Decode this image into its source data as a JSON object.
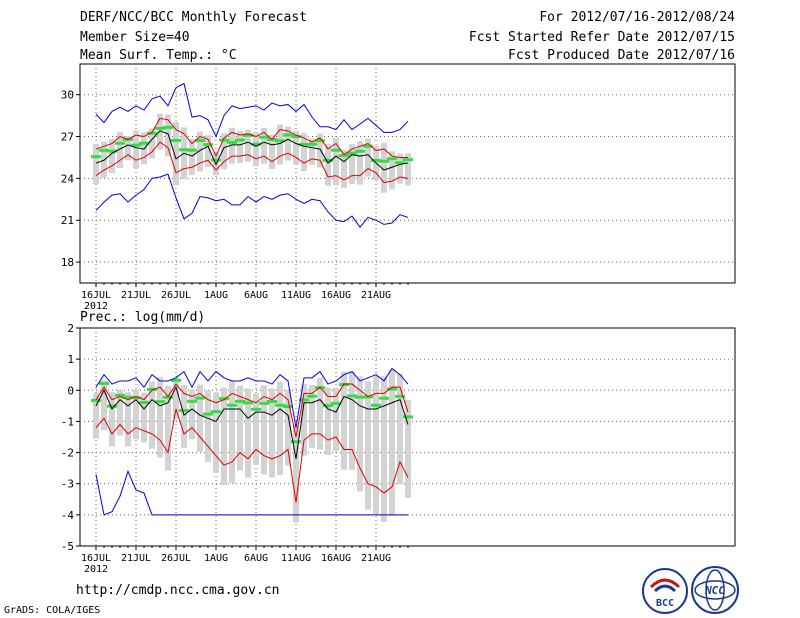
{
  "header": {
    "title": "DERF/NCC/BCC Monthly Forecast",
    "member_size": "Member Size=40",
    "variable": "Mean Surf. Temp.: °C",
    "period": "For 2012/07/16-2012/08/24",
    "started": "Fcst Started Refer Date 2012/07/15",
    "produced": "Fcst Produced Date 2012/07/16"
  },
  "footer": {
    "url": "http://cmdp.ncc.cma.gov.cn",
    "credit": "GrADS: COLA/IGES",
    "logo_left_text": "BCC",
    "logo_right_text": "NCC"
  },
  "colors": {
    "box": "#d3d3d3",
    "median": "#33dd44",
    "mean": "#000000",
    "pct": "#dd0000",
    "env": "#0000dd",
    "grid": "#666666"
  },
  "chart_data": [
    {
      "type": "line",
      "title": "Mean Surf. Temp.: °C",
      "xlabel": "",
      "ylabel": "°C",
      "x_tick_labels": [
        "16JUL",
        "21JUL",
        "26JUL",
        "1AUG",
        "6AUG",
        "11AUG",
        "16AUG",
        "21AUG"
      ],
      "x_year_label": "2012",
      "y_ticks": [
        18,
        21,
        24,
        27,
        30
      ],
      "ylim": [
        16.5,
        32.2
      ],
      "n_days": 40,
      "grid": true,
      "series": [
        {
          "name": "max",
          "values": [
            28.6,
            28.0,
            28.8,
            29.1,
            28.8,
            29.2,
            28.9,
            29.7,
            29.9,
            29.2,
            30.5,
            30.8,
            28.4,
            28.5,
            28.2,
            27.0,
            28.5,
            29.2,
            29.0,
            29.1,
            29.2,
            28.9,
            29.4,
            29.2,
            29.3,
            28.8,
            29.3,
            28.4,
            27.7,
            27.7,
            27.5,
            28.2,
            27.5,
            27.9,
            28.3,
            27.8,
            27.3,
            27.3,
            27.5,
            28.1
          ]
        },
        {
          "name": "p75",
          "values": [
            26.1,
            26.3,
            26.5,
            27.0,
            26.8,
            27.1,
            27.0,
            27.3,
            28.3,
            28.2,
            27.5,
            27.2,
            26.5,
            27.0,
            26.8,
            25.6,
            26.9,
            27.3,
            27.1,
            27.2,
            27.0,
            27.3,
            26.8,
            27.5,
            27.4,
            27.1,
            26.9,
            26.6,
            26.9,
            26.1,
            26.5,
            25.7,
            26.1,
            26.3,
            26.5,
            26.0,
            26.1,
            25.6,
            25.5,
            25.5
          ]
        },
        {
          "name": "mean",
          "values": [
            25.1,
            25.3,
            25.8,
            26.1,
            26.4,
            26.2,
            26.1,
            26.8,
            27.4,
            27.2,
            25.4,
            25.8,
            25.6,
            26.0,
            26.3,
            25.0,
            26.2,
            26.4,
            26.4,
            26.6,
            26.3,
            26.6,
            26.4,
            26.5,
            26.8,
            26.5,
            26.3,
            26.2,
            26.1,
            25.1,
            25.6,
            25.2,
            25.7,
            25.6,
            25.7,
            25.1,
            24.6,
            24.8,
            25.0,
            25.1
          ]
        },
        {
          "name": "p25",
          "values": [
            24.2,
            24.6,
            24.9,
            25.3,
            25.7,
            25.3,
            25.5,
            25.9,
            26.6,
            26.2,
            24.4,
            24.7,
            24.8,
            25.1,
            25.3,
            24.6,
            25.2,
            25.6,
            25.6,
            25.7,
            25.4,
            25.6,
            25.2,
            25.6,
            25.8,
            25.5,
            25.1,
            25.4,
            25.3,
            24.1,
            24.2,
            23.9,
            24.2,
            24.2,
            24.7,
            24.4,
            23.7,
            23.8,
            24.1,
            24.0
          ]
        },
        {
          "name": "min",
          "values": [
            21.7,
            22.3,
            22.8,
            22.9,
            22.3,
            22.8,
            23.2,
            24.0,
            24.1,
            24.3,
            22.6,
            21.1,
            21.5,
            22.7,
            22.6,
            22.4,
            22.5,
            22.1,
            22.1,
            22.7,
            22.3,
            22.7,
            22.5,
            22.8,
            22.9,
            22.5,
            22.2,
            22.5,
            22.4,
            21.6,
            21.0,
            20.9,
            21.3,
            20.5,
            21.2,
            21.0,
            20.7,
            20.8,
            21.4,
            21.2
          ]
        }
      ]
    },
    {
      "type": "line",
      "title": "Prec.: log(mm/d)",
      "xlabel": "",
      "ylabel": "log(mm/d)",
      "x_tick_labels": [
        "16JUL",
        "21JUL",
        "26JUL",
        "1AUG",
        "6AUG",
        "11AUG",
        "16AUG",
        "21AUG"
      ],
      "x_year_label": "2012",
      "y_ticks": [
        -5,
        -4,
        -3,
        -2,
        -1,
        0,
        1,
        2
      ],
      "ylim": [
        -5,
        2
      ],
      "n_days": 40,
      "grid": true,
      "series": [
        {
          "name": "max",
          "values": [
            0.1,
            0.5,
            0.2,
            0.3,
            0.3,
            0.4,
            0.1,
            0.5,
            0.3,
            0.3,
            0.4,
            0.6,
            0.1,
            0.6,
            0.3,
            0.6,
            0.4,
            0.3,
            0.3,
            0.4,
            0.3,
            0.3,
            0.2,
            0.5,
            0.3,
            -1.2,
            0.4,
            0.4,
            0.6,
            0.2,
            0.3,
            0.5,
            0.6,
            0.3,
            0.4,
            0.5,
            0.3,
            0.7,
            0.5,
            0.2
          ]
        },
        {
          "name": "p75",
          "values": [
            -0.3,
            0.1,
            -0.3,
            -0.2,
            -0.3,
            -0.2,
            -0.3,
            0.0,
            0.1,
            -0.2,
            0.2,
            -0.1,
            -0.2,
            -0.1,
            -0.3,
            -0.4,
            -0.3,
            -0.1,
            -0.2,
            -0.3,
            -0.4,
            -0.2,
            -0.3,
            -0.1,
            -0.3,
            -1.5,
            -0.1,
            -0.1,
            0.1,
            -0.2,
            -0.2,
            0.2,
            0.2,
            0.0,
            -0.2,
            -0.1,
            -0.1,
            0.1,
            0.1,
            -0.7
          ]
        },
        {
          "name": "mean",
          "values": [
            -0.5,
            0.0,
            -0.6,
            -0.3,
            -0.5,
            -0.3,
            -0.6,
            -0.3,
            -0.5,
            -0.4,
            0.1,
            -0.8,
            -0.6,
            -0.8,
            -0.9,
            -1.0,
            -0.6,
            -0.6,
            -0.6,
            -0.9,
            -0.7,
            -0.7,
            -0.8,
            -0.6,
            -0.8,
            -2.2,
            -0.4,
            -0.4,
            -0.3,
            -0.6,
            -0.7,
            -0.2,
            -0.3,
            -0.5,
            -0.6,
            -0.6,
            -0.5,
            -0.4,
            -0.3,
            -1.1
          ]
        },
        {
          "name": "p25",
          "values": [
            -1.2,
            -0.9,
            -1.4,
            -1.1,
            -1.4,
            -1.2,
            -1.3,
            -1.4,
            -1.6,
            -2.0,
            -0.6,
            -1.4,
            -1.2,
            -1.5,
            -1.8,
            -2.1,
            -2.4,
            -2.3,
            -2.0,
            -2.2,
            -1.9,
            -2.1,
            -2.2,
            -2.1,
            -1.9,
            -3.6,
            -1.6,
            -1.4,
            -1.4,
            -1.6,
            -1.5,
            -1.9,
            -1.9,
            -2.5,
            -3.0,
            -3.1,
            -3.3,
            -3.1,
            -2.3,
            -2.8
          ]
        },
        {
          "name": "min",
          "values": [
            -2.7,
            -4.0,
            -3.9,
            -3.4,
            -2.6,
            -3.2,
            -3.3,
            -4.0,
            -4.0,
            -4.0,
            -4.0,
            -4.0,
            -4.0,
            -4.0,
            -4.0,
            -4.0,
            -4.0,
            -4.0,
            -4.0,
            -4.0,
            -4.0,
            -4.0,
            -4.0,
            -4.0,
            -4.0,
            -4.0,
            -4.0,
            -4.0,
            -4.0,
            -4.0,
            -4.0,
            -4.0,
            -4.0,
            -4.0,
            -4.0,
            -4.0,
            -4.0,
            -4.0,
            -4.0,
            -4.0
          ]
        }
      ]
    }
  ]
}
